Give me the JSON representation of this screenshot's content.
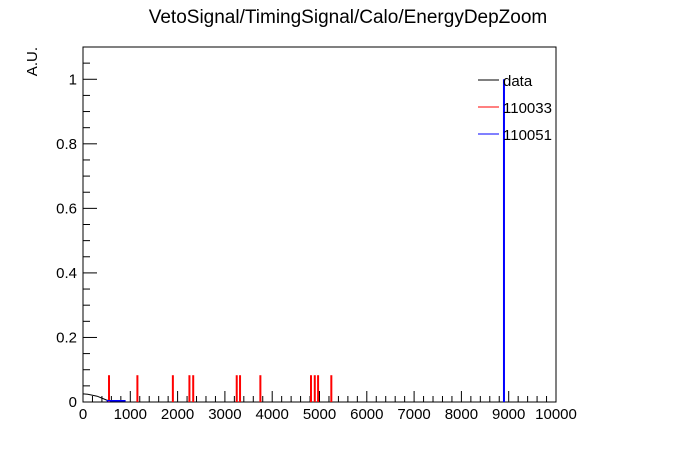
{
  "chart_data": {
    "type": "line",
    "title": "VetoSignal/TimingSignal/Calo/EnergyDepZoom",
    "xlabel": "",
    "ylabel": "A.U.",
    "xlim": [
      0,
      10000
    ],
    "ylim": [
      0,
      1.1
    ],
    "x_ticks": [
      0,
      1000,
      2000,
      3000,
      4000,
      5000,
      6000,
      7000,
      8000,
      9000,
      10000
    ],
    "x_tick_labels": [
      "0",
      "1000",
      "2000",
      "3000",
      "4000",
      "5000",
      "6000",
      "7000",
      "8000",
      "9000",
      "10000"
    ],
    "y_ticks": [
      0,
      0.2,
      0.4,
      0.6,
      0.8,
      1
    ],
    "y_tick_labels": [
      "0",
      "0.2",
      "0.4",
      "0.6",
      "0.8",
      "1"
    ],
    "grid": false,
    "legend": "top-right",
    "series": [
      {
        "name": "data",
        "color": "#000000",
        "style": "curve",
        "points": [
          [
            0,
            0.025
          ],
          [
            100,
            0.024
          ],
          [
            200,
            0.021
          ],
          [
            300,
            0.018
          ],
          [
            400,
            0.012
          ],
          [
            500,
            0.006
          ],
          [
            600,
            0.003
          ],
          [
            700,
            0.002
          ],
          [
            800,
            0.001
          ],
          [
            900,
            0.0
          ]
        ]
      },
      {
        "name": "110033",
        "color": "#ff0000",
        "style": "spikes",
        "spikes": [
          [
            550,
            0.083
          ],
          [
            1150,
            0.083
          ],
          [
            1900,
            0.083
          ],
          [
            2250,
            0.083
          ],
          [
            2330,
            0.083
          ],
          [
            3250,
            0.083
          ],
          [
            3320,
            0.083
          ],
          [
            3750,
            0.083
          ],
          [
            4820,
            0.083
          ],
          [
            4900,
            0.083
          ],
          [
            4970,
            0.083
          ],
          [
            5250,
            0.083
          ]
        ]
      },
      {
        "name": "110051",
        "color": "#0000ff",
        "style": "spikes",
        "spikes": [
          [
            8900,
            1.0
          ]
        ],
        "baseline": [
          [
            500,
            0.004
          ],
          [
            900,
            0.004
          ]
        ]
      }
    ]
  }
}
